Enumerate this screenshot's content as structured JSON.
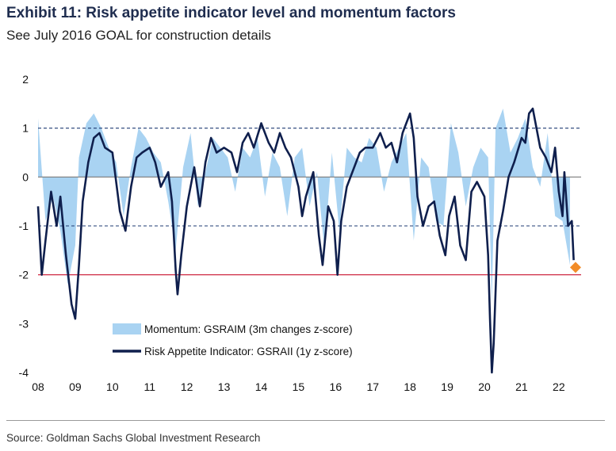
{
  "header": {
    "title": "Exhibit 11: Risk appetite indicator level and momentum factors",
    "subtitle": "See July 2016 GOAL for construction details"
  },
  "footer": {
    "source": "Source: Goldman Sachs Global Investment Research"
  },
  "colors": {
    "momentum_fill": "#a9d3f2",
    "gsraii_line": "#0f1f4d",
    "threshold_red": "#c8102e",
    "dashed_lines": "#1f3b73",
    "marker": "#f28c28"
  },
  "chart_data": {
    "type": "area",
    "title": "",
    "xlabel": "",
    "ylabel": "",
    "ylim": [
      -4,
      2
    ],
    "yticks": [
      2,
      1,
      0,
      -1,
      -2,
      -3,
      -4
    ],
    "xlim": [
      2008,
      2022.6
    ],
    "xticks": [
      {
        "value": 2008,
        "label": "08"
      },
      {
        "value": 2009,
        "label": "09"
      },
      {
        "value": 2010,
        "label": "10"
      },
      {
        "value": 2011,
        "label": "11"
      },
      {
        "value": 2012,
        "label": "12"
      },
      {
        "value": 2013,
        "label": "13"
      },
      {
        "value": 2014,
        "label": "14"
      },
      {
        "value": 2015,
        "label": "15"
      },
      {
        "value": 2016,
        "label": "16"
      },
      {
        "value": 2017,
        "label": "17"
      },
      {
        "value": 2018,
        "label": "18"
      },
      {
        "value": 2019,
        "label": "19"
      },
      {
        "value": 2020,
        "label": "20"
      },
      {
        "value": 2021,
        "label": "21"
      },
      {
        "value": 2022,
        "label": "22"
      }
    ],
    "reference_lines": [
      {
        "y": 1,
        "style": "dashed"
      },
      {
        "y": 0,
        "style": "solid"
      },
      {
        "y": -1,
        "style": "dashed"
      },
      {
        "y": -2,
        "style": "solid-red"
      }
    ],
    "grid": false,
    "legend_position": "bottom-left",
    "series": [
      {
        "name": "Momentum: GSRAIM (3m changes z-score)",
        "kind": "area",
        "x": [
          2008.0,
          2008.2,
          2008.4,
          2008.6,
          2008.8,
          2009.0,
          2009.1,
          2009.3,
          2009.5,
          2009.7,
          2009.9,
          2010.1,
          2010.3,
          2010.5,
          2010.7,
          2010.9,
          2011.1,
          2011.3,
          2011.5,
          2011.7,
          2011.9,
          2012.1,
          2012.3,
          2012.5,
          2012.7,
          2012.9,
          2013.1,
          2013.3,
          2013.5,
          2013.7,
          2013.9,
          2014.1,
          2014.3,
          2014.5,
          2014.7,
          2014.9,
          2015.1,
          2015.3,
          2015.5,
          2015.7,
          2015.9,
          2016.1,
          2016.3,
          2016.5,
          2016.7,
          2016.9,
          2017.1,
          2017.3,
          2017.5,
          2017.7,
          2017.9,
          2018.1,
          2018.3,
          2018.5,
          2018.7,
          2018.9,
          2019.1,
          2019.3,
          2019.5,
          2019.7,
          2019.9,
          2020.1,
          2020.2,
          2020.3,
          2020.5,
          2020.7,
          2020.9,
          2021.1,
          2021.3,
          2021.5,
          2021.7,
          2021.9,
          2022.1,
          2022.3
        ],
        "values": [
          1.2,
          -0.9,
          -0.4,
          -1.1,
          -2.2,
          -1.4,
          0.4,
          1.1,
          1.3,
          1.0,
          0.6,
          0.3,
          -0.8,
          0.2,
          1.0,
          0.8,
          0.5,
          0.3,
          -0.5,
          -1.5,
          0.2,
          0.9,
          -0.6,
          0.1,
          0.8,
          0.6,
          0.4,
          -0.3,
          0.6,
          0.4,
          0.8,
          -0.4,
          0.5,
          0.2,
          -0.8,
          0.4,
          0.6,
          -0.6,
          0.1,
          -1.5,
          0.5,
          -1.1,
          0.6,
          0.4,
          0.3,
          0.8,
          0.6,
          -0.3,
          0.3,
          0.6,
          0.9,
          -1.3,
          0.4,
          0.2,
          -0.9,
          -1.0,
          1.1,
          0.5,
          -0.6,
          0.2,
          0.6,
          0.4,
          -2.6,
          1.0,
          1.4,
          0.5,
          0.8,
          1.2,
          0.2,
          -0.2,
          0.9,
          -0.8,
          -0.9,
          -1.8
        ]
      },
      {
        "name": "Risk Appetite Indicator: GSRAII (1y z-score)",
        "kind": "line",
        "x": [
          2008.0,
          2008.1,
          2008.2,
          2008.35,
          2008.5,
          2008.6,
          2008.75,
          2008.9,
          2009.0,
          2009.1,
          2009.2,
          2009.35,
          2009.5,
          2009.65,
          2009.8,
          2010.0,
          2010.2,
          2010.35,
          2010.5,
          2010.65,
          2010.8,
          2011.0,
          2011.15,
          2011.3,
          2011.5,
          2011.6,
          2011.7,
          2011.75,
          2011.85,
          2012.0,
          2012.2,
          2012.35,
          2012.5,
          2012.65,
          2012.8,
          2013.0,
          2013.2,
          2013.35,
          2013.5,
          2013.65,
          2013.8,
          2014.0,
          2014.2,
          2014.35,
          2014.5,
          2014.65,
          2014.8,
          2015.0,
          2015.1,
          2015.2,
          2015.4,
          2015.55,
          2015.65,
          2015.8,
          2015.95,
          2016.05,
          2016.15,
          2016.3,
          2016.5,
          2016.65,
          2016.8,
          2017.0,
          2017.2,
          2017.35,
          2017.5,
          2017.65,
          2017.8,
          2018.0,
          2018.1,
          2018.2,
          2018.35,
          2018.5,
          2018.65,
          2018.8,
          2018.95,
          2019.05,
          2019.2,
          2019.35,
          2019.5,
          2019.65,
          2019.8,
          2020.0,
          2020.1,
          2020.15,
          2020.2,
          2020.25,
          2020.35,
          2020.5,
          2020.65,
          2020.8,
          2021.0,
          2021.1,
          2021.2,
          2021.3,
          2021.4,
          2021.5,
          2021.65,
          2021.8,
          2021.9,
          2022.0,
          2022.1,
          2022.15,
          2022.25,
          2022.35,
          2022.4
        ],
        "values": [
          -0.6,
          -2.0,
          -1.3,
          -0.3,
          -1.0,
          -0.4,
          -1.6,
          -2.6,
          -2.9,
          -1.8,
          -0.5,
          0.3,
          0.8,
          0.9,
          0.6,
          0.5,
          -0.7,
          -1.1,
          -0.2,
          0.4,
          0.5,
          0.6,
          0.3,
          -0.2,
          0.1,
          -0.5,
          -1.9,
          -2.4,
          -1.6,
          -0.6,
          0.2,
          -0.6,
          0.3,
          0.8,
          0.5,
          0.6,
          0.5,
          0.1,
          0.7,
          0.9,
          0.6,
          1.1,
          0.7,
          0.5,
          0.9,
          0.6,
          0.4,
          -0.2,
          -0.8,
          -0.4,
          0.1,
          -1.2,
          -1.8,
          -0.6,
          -0.9,
          -2.0,
          -0.9,
          -0.2,
          0.2,
          0.5,
          0.6,
          0.6,
          0.9,
          0.6,
          0.7,
          0.3,
          0.9,
          1.3,
          0.8,
          -0.4,
          -1.0,
          -0.6,
          -0.5,
          -1.2,
          -1.6,
          -0.8,
          -0.4,
          -1.4,
          -1.7,
          -0.3,
          -0.1,
          -0.4,
          -1.6,
          -2.9,
          -4.0,
          -3.4,
          -1.3,
          -0.7,
          0.0,
          0.3,
          0.8,
          0.7,
          1.3,
          1.4,
          1.0,
          0.6,
          0.4,
          0.1,
          0.6,
          -0.3,
          -0.8,
          0.1,
          -1.0,
          -0.9,
          -1.7
        ]
      }
    ],
    "marker": {
      "x": 2022.45,
      "y": -1.85,
      "shape": "diamond"
    }
  }
}
